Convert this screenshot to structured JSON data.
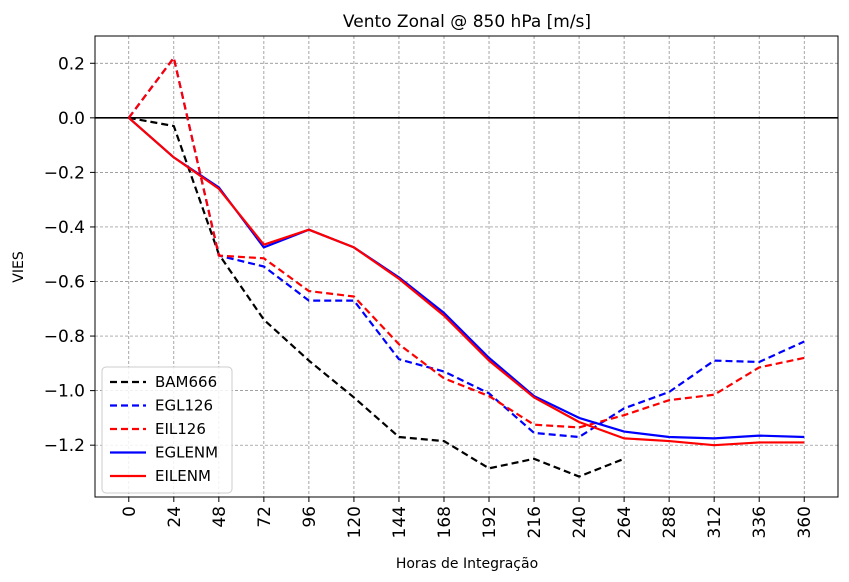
{
  "chart_data": {
    "type": "line",
    "title": "Vento Zonal @ 850 hPa [m/s]",
    "xlabel": "Horas de Integração",
    "ylabel": "VIES",
    "x": [
      0,
      24,
      48,
      72,
      96,
      120,
      144,
      168,
      192,
      216,
      240,
      264,
      288,
      312,
      336,
      360
    ],
    "xticks": [
      "0",
      "24",
      "48",
      "72",
      "96",
      "120",
      "144",
      "168",
      "192",
      "216",
      "240",
      "264",
      "288",
      "312",
      "336",
      "360"
    ],
    "yticks": [
      0.2,
      0.0,
      -0.2,
      -0.4,
      -0.6,
      -0.8,
      -1.0,
      -1.2
    ],
    "ytick_labels": [
      "0.2",
      "0.0",
      "−0.2",
      "−0.4",
      "−0.6",
      "−0.8",
      "−1.0",
      "−1.2"
    ],
    "xlim": [
      -18,
      378
    ],
    "ylim": [
      -1.39,
      0.3
    ],
    "grid": true,
    "reference_line": 0,
    "legend_position": "lower-left",
    "series": [
      {
        "name": "BAM666",
        "color": "#000000",
        "style": "dashed",
        "values": [
          0.0,
          -0.03,
          -0.5,
          -0.74,
          -0.89,
          -1.025,
          -1.17,
          -1.185,
          -1.285,
          -1.25,
          -1.315,
          -1.25,
          null,
          null,
          null,
          null
        ]
      },
      {
        "name": "EGL126",
        "color": "#0000ff",
        "style": "dashed",
        "values": [
          0.0,
          0.22,
          -0.505,
          -0.545,
          -0.67,
          -0.67,
          -0.885,
          -0.93,
          -1.01,
          -1.155,
          -1.17,
          -1.065,
          -1.005,
          -0.89,
          -0.895,
          -0.82
        ]
      },
      {
        "name": "EIL126",
        "color": "#ff0000",
        "style": "dashed",
        "values": [
          0.0,
          0.22,
          -0.505,
          -0.515,
          -0.635,
          -0.655,
          -0.83,
          -0.955,
          -1.02,
          -1.125,
          -1.135,
          -1.09,
          -1.035,
          -1.015,
          -0.915,
          -0.88
        ]
      },
      {
        "name": "EGLENM",
        "color": "#0000ff",
        "style": "solid",
        "values": [
          0.0,
          -0.145,
          -0.255,
          -0.475,
          -0.41,
          -0.475,
          -0.585,
          -0.715,
          -0.88,
          -1.02,
          -1.1,
          -1.15,
          -1.17,
          -1.175,
          -1.165,
          -1.17
        ]
      },
      {
        "name": "EILENM",
        "color": "#ff0000",
        "style": "solid",
        "values": [
          0.0,
          -0.145,
          -0.26,
          -0.465,
          -0.41,
          -0.475,
          -0.59,
          -0.725,
          -0.89,
          -1.025,
          -1.115,
          -1.175,
          -1.185,
          -1.2,
          -1.19,
          -1.19
        ]
      }
    ]
  }
}
